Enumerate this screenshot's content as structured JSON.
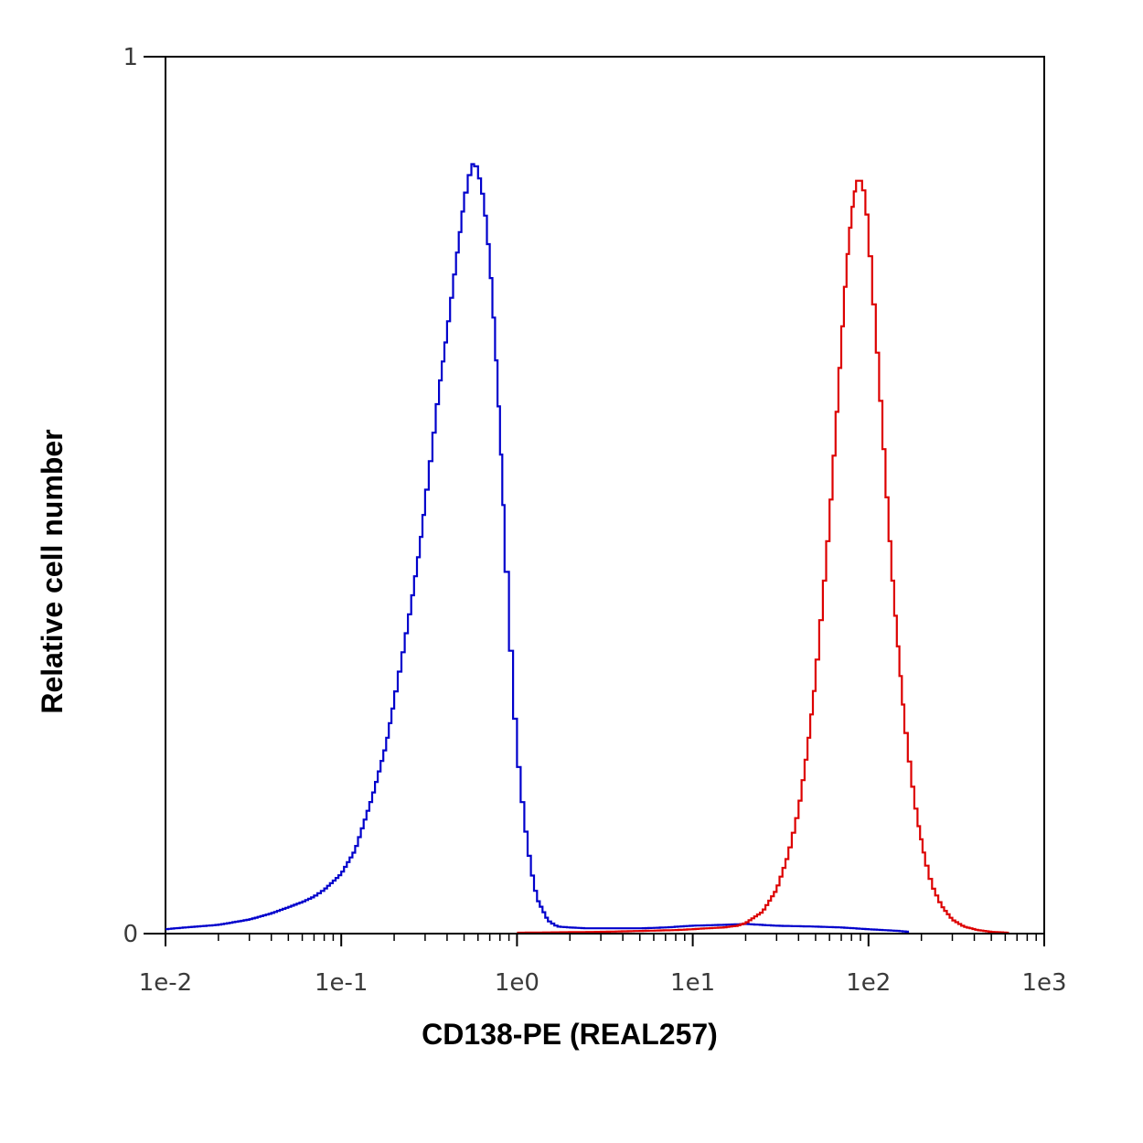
{
  "chart_data": {
    "type": "line",
    "title": "",
    "xlabel": "CD138-PE (REAL257)",
    "ylabel": "Relative cell number",
    "x_scale": "log",
    "xlim": [
      0.01,
      1000
    ],
    "ylim": [
      0,
      1
    ],
    "x_tick_labels": [
      "1e-2",
      "1e-1",
      "1e0",
      "1e1",
      "1e2",
      "1e3"
    ],
    "y_tick_labels": [
      "0",
      "1"
    ],
    "grid": false,
    "legend": "none",
    "series": [
      {
        "color": "#0000cc",
        "x": [
          0.01,
          0.013,
          0.02,
          0.03,
          0.04,
          0.05,
          0.06,
          0.07,
          0.08,
          0.1,
          0.12,
          0.15,
          0.18,
          0.2,
          0.22,
          0.25,
          0.28,
          0.3,
          0.33,
          0.36,
          0.4,
          0.45,
          0.5,
          0.55,
          0.57,
          0.6,
          0.65,
          0.7,
          0.75,
          0.8,
          0.85,
          0.9,
          0.95,
          1.0,
          1.1,
          1.2,
          1.3,
          1.5,
          1.7,
          2.0,
          2.5,
          3,
          5,
          7,
          10,
          15,
          20,
          30,
          50,
          70,
          100,
          150,
          170
        ],
        "values": [
          0.005,
          0.007,
          0.01,
          0.016,
          0.023,
          0.03,
          0.036,
          0.042,
          0.05,
          0.068,
          0.095,
          0.155,
          0.215,
          0.265,
          0.31,
          0.375,
          0.44,
          0.49,
          0.555,
          0.62,
          0.685,
          0.765,
          0.835,
          0.875,
          0.88,
          0.87,
          0.835,
          0.77,
          0.68,
          0.575,
          0.46,
          0.365,
          0.28,
          0.21,
          0.13,
          0.075,
          0.04,
          0.015,
          0.008,
          0.007,
          0.006,
          0.006,
          0.006,
          0.007,
          0.009,
          0.01,
          0.011,
          0.009,
          0.008,
          0.007,
          0.005,
          0.003,
          0.002
        ]
      },
      {
        "color": "#dd0000",
        "x": [
          1,
          3,
          5,
          8,
          10,
          12,
          15,
          18,
          20,
          25,
          30,
          35,
          40,
          45,
          50,
          55,
          60,
          65,
          70,
          75,
          80,
          85,
          88,
          92,
          96,
          100,
          110,
          120,
          130,
          140,
          150,
          160,
          175,
          190,
          210,
          230,
          260,
          300,
          350,
          420,
          500,
          630
        ],
        "values": [
          0.001,
          0.002,
          0.003,
          0.004,
          0.005,
          0.006,
          0.007,
          0.009,
          0.012,
          0.025,
          0.05,
          0.09,
          0.14,
          0.21,
          0.29,
          0.38,
          0.47,
          0.57,
          0.67,
          0.76,
          0.82,
          0.855,
          0.862,
          0.855,
          0.84,
          0.8,
          0.69,
          0.58,
          0.47,
          0.38,
          0.31,
          0.245,
          0.18,
          0.13,
          0.085,
          0.055,
          0.032,
          0.016,
          0.008,
          0.004,
          0.002,
          0.001
        ]
      }
    ]
  }
}
